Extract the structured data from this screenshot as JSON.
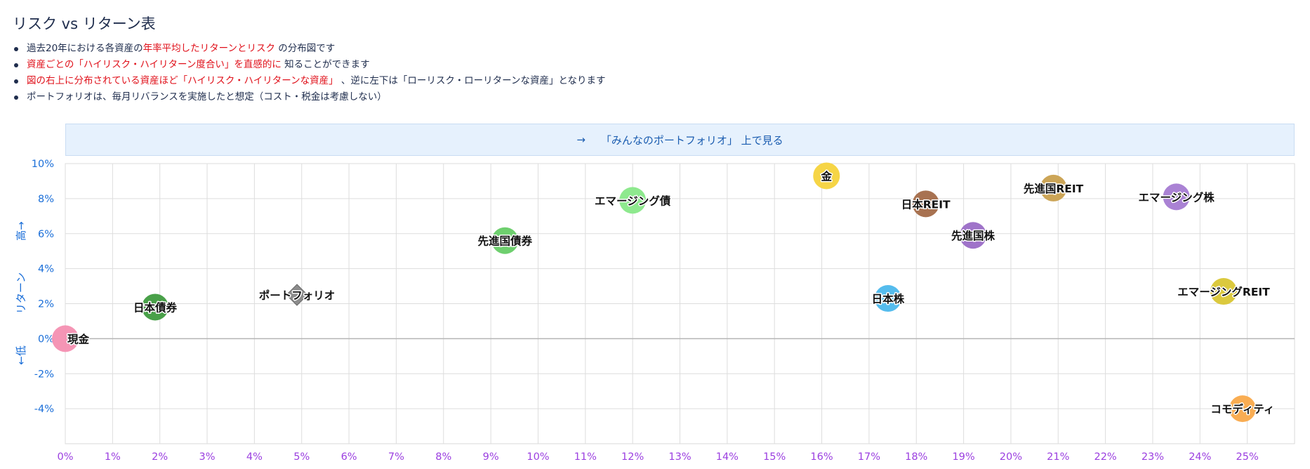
{
  "title": "リスク vs リターン表",
  "notes": [
    {
      "parts": [
        {
          "text": "過去20年における各資産の",
          "red": false
        },
        {
          "text": "年率平均したリターンとリスク",
          "red": true
        },
        {
          "text": " の分布図です",
          "red": false
        }
      ]
    },
    {
      "parts": [
        {
          "text": "資産ごとの「ハイリスク・ハイリターン度合い」を直感的に",
          "red": true
        },
        {
          "text": " 知ることができます",
          "red": false
        }
      ]
    },
    {
      "parts": [
        {
          "text": "図の右上に分布されている資産ほど「ハイリスク・ハイリターンな資産」",
          "red": true
        },
        {
          "text": " 、逆に左下は「ローリスク・ローリターンな資産」となります",
          "red": false
        }
      ]
    },
    {
      "parts": [
        {
          "text": "ポートフォリオは、毎月リバランスを実施したと想定（コスト・税金は考慮しない）",
          "red": false
        }
      ]
    }
  ],
  "banner": {
    "arrow": "→",
    "label": "「みんなのポートフォリオ」 上で見る"
  },
  "chart_data": {
    "type": "scatter",
    "xlabel": "",
    "ylabel_top": "高→",
    "ylabel_mid": "リターン",
    "ylabel_bottom": "←低",
    "xlim": [
      0,
      26
    ],
    "ylim": [
      -6,
      10
    ],
    "xticks": [
      "0%",
      "1%",
      "2%",
      "3%",
      "4%",
      "5%",
      "6%",
      "7%",
      "8%",
      "9%",
      "10%",
      "11%",
      "12%",
      "13%",
      "14%",
      "15%",
      "16%",
      "17%",
      "18%",
      "19%",
      "20%",
      "21%",
      "22%",
      "23%",
      "24%",
      "25%"
    ],
    "yticks": [
      "10%",
      "8%",
      "6%",
      "4%",
      "2%",
      "0%",
      "-2%",
      "-4%"
    ],
    "grid": true,
    "x_tick_color": "#9b3fe0",
    "y_tick_color": "#1a6ed8",
    "points": [
      {
        "name": "現金",
        "x": 0.0,
        "y": 0.0,
        "color": "#f48fb1",
        "shape": "circle"
      },
      {
        "name": "日本債券",
        "x": 1.9,
        "y": 1.8,
        "color": "#3f9b3f",
        "shape": "circle"
      },
      {
        "name": "ポートフォリオ",
        "x": 4.9,
        "y": 2.5,
        "color": "#8c8c8c",
        "shape": "diamond"
      },
      {
        "name": "先進国債券",
        "x": 9.3,
        "y": 5.6,
        "color": "#66cc66",
        "shape": "circle"
      },
      {
        "name": "エマージング債",
        "x": 12.0,
        "y": 7.9,
        "color": "#88e888",
        "shape": "circle"
      },
      {
        "name": "金",
        "x": 16.1,
        "y": 9.3,
        "color": "#f5d33c",
        "shape": "circle"
      },
      {
        "name": "日本株",
        "x": 17.4,
        "y": 2.3,
        "color": "#4cb8ec",
        "shape": "circle"
      },
      {
        "name": "日本REIT",
        "x": 18.2,
        "y": 7.7,
        "color": "#a36a48",
        "shape": "circle"
      },
      {
        "name": "先進国株",
        "x": 19.2,
        "y": 5.9,
        "color": "#9a6cc6",
        "shape": "circle"
      },
      {
        "name": "先進国REIT",
        "x": 20.9,
        "y": 8.6,
        "color": "#c9a04e",
        "shape": "circle"
      },
      {
        "name": "エマージング株",
        "x": 23.5,
        "y": 8.1,
        "color": "#a57bd2",
        "shape": "circle"
      },
      {
        "name": "エマージングREIT",
        "x": 24.5,
        "y": 2.7,
        "color": "#d9c634",
        "shape": "circle"
      },
      {
        "name": "コモディティ",
        "x": 24.9,
        "y": -4.0,
        "color": "#f9a94a",
        "shape": "circle"
      }
    ]
  }
}
